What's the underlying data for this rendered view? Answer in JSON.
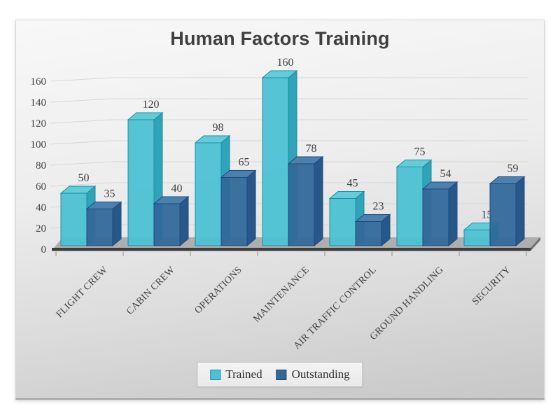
{
  "chart_data": {
    "type": "bar",
    "style": "3d-clustered-column",
    "title": "Human Factors Training",
    "categories": [
      "FLIGHT CREW",
      "CABIN CREW",
      "OPERATIONS",
      "MAINTENANCE",
      "AIR TRAFFIC CONTROL",
      "GROUND HANDLING",
      "SECURITY"
    ],
    "series": [
      {
        "name": "Trained",
        "values": [
          50,
          120,
          98,
          160,
          45,
          75,
          15
        ],
        "color": "#4cc2d4",
        "color_top": "#63ccd9",
        "color_side": "#2fa3b7",
        "color_edge": "#1e8ba0"
      },
      {
        "name": "Outstanding",
        "values": [
          35,
          40,
          65,
          78,
          23,
          54,
          59
        ],
        "color": "#33699a",
        "color_top": "#4c80ae",
        "color_side": "#27588c",
        "color_edge": "#1c4a75"
      }
    ],
    "value_labels_shown": true,
    "ylim": [
      0,
      160
    ],
    "ytick_step": 20,
    "yticks": [
      0,
      20,
      40,
      60,
      80,
      100,
      120,
      140,
      160
    ],
    "grid": true,
    "legend_position": "bottom",
    "text_color": "#3f3f3f",
    "gridline_color": "#d8d8d9",
    "floor_color": "#aeaeae",
    "floor_edge_color": "#3c3c3c",
    "panel_background_top": "#f8f8f9",
    "panel_background_bottom": "#c7c7c8"
  }
}
